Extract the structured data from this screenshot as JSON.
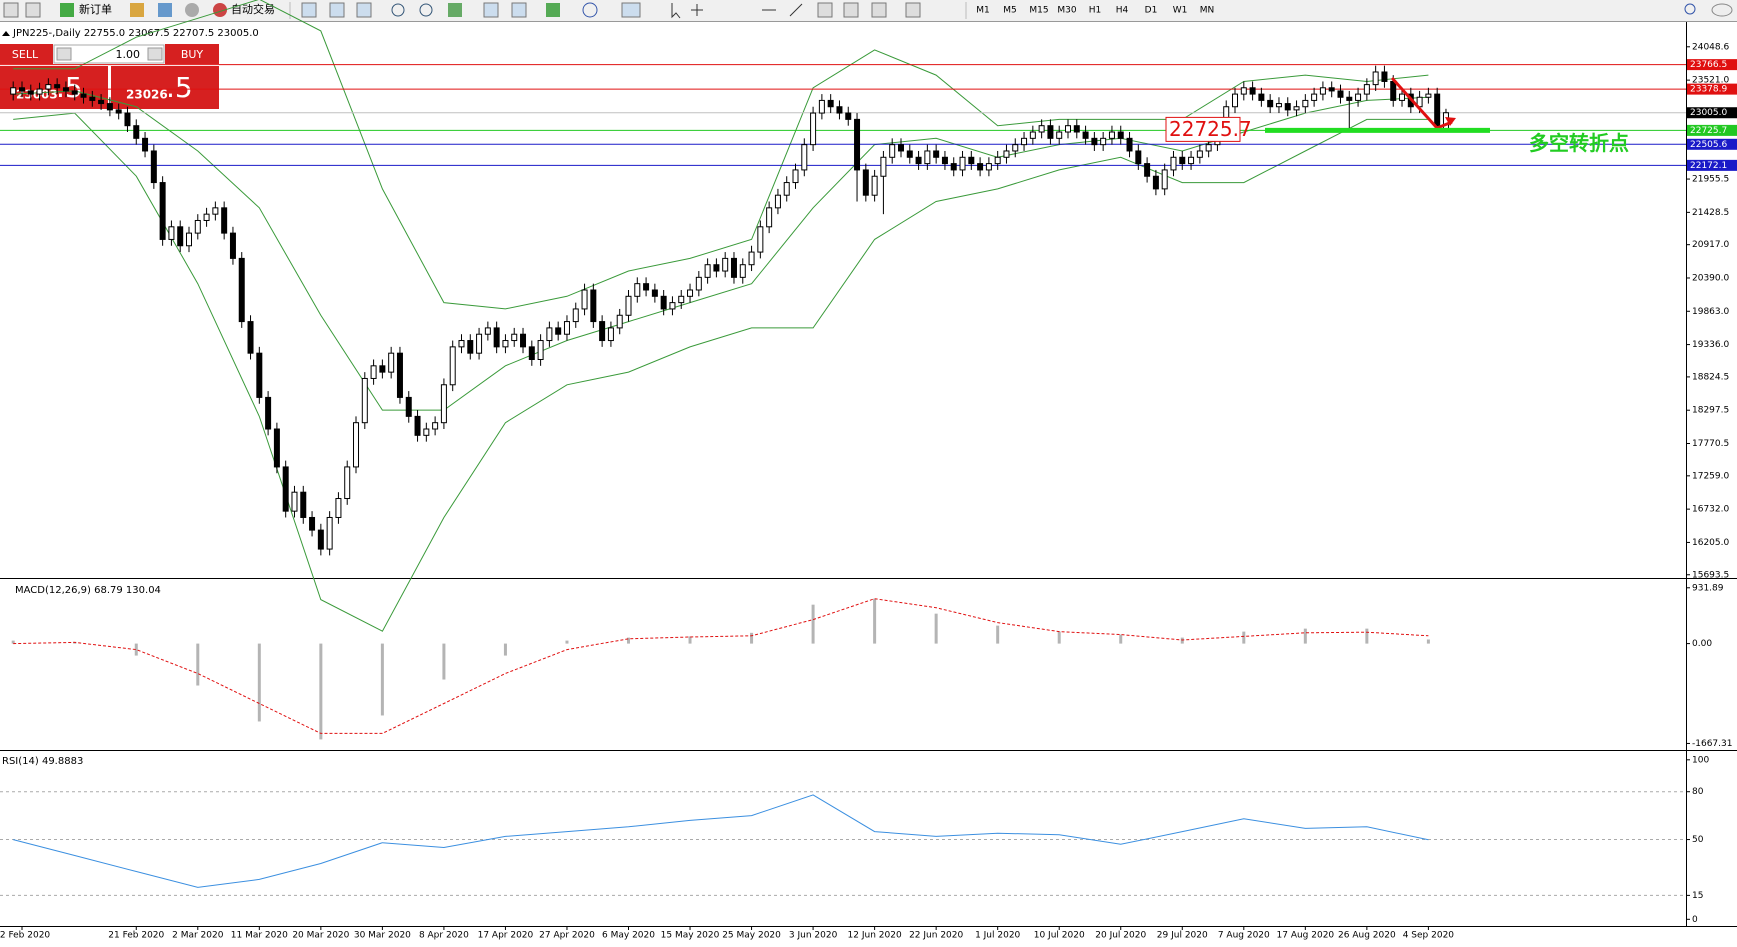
{
  "toolbar": {
    "new_order": "新订单",
    "auto_trading": "自动交易",
    "timeframes": [
      "M1",
      "M5",
      "M15",
      "M30",
      "H1",
      "H4",
      "D1",
      "W1",
      "MN"
    ]
  },
  "trade_panel": {
    "sell": "SELL",
    "buy": "BUY",
    "volume": "1.00",
    "sell_main": "23003",
    "sell_frac": ".5",
    "buy_main": "23026",
    "buy_frac": ".5"
  },
  "chart_data": [
    {
      "type": "candlestick",
      "title": "JPN225-,Daily  22755.0 23067.5 22707.5 23005.0",
      "categories": [
        null,
        "2 Feb 2020",
        null,
        null,
        null,
        null,
        null,
        null,
        null,
        null,
        null,
        null,
        null,
        null,
        "21 Feb 2020",
        null,
        null,
        null,
        null,
        null,
        null,
        "2 Mar 2020",
        null,
        null,
        null,
        null,
        null,
        null,
        "11 Mar 2020",
        null,
        null,
        null,
        null,
        null,
        null,
        "20 Mar 2020",
        null,
        null,
        null,
        null,
        null,
        null,
        "30 Mar 2020",
        null,
        null,
        null,
        null,
        null,
        null,
        "8 Apr 2020",
        null,
        null,
        null,
        null,
        null,
        null,
        "17 Apr 2020",
        null,
        null,
        null,
        null,
        null,
        null,
        "27 Apr 2020",
        null,
        null,
        null,
        null,
        null,
        null,
        "6 May 2020",
        null,
        null,
        null,
        null,
        null,
        null,
        "15 May 2020",
        null,
        null,
        null,
        null,
        null,
        null,
        "25 May 2020",
        null,
        null,
        null,
        null,
        null,
        null,
        "3 Jun 2020",
        null,
        null,
        null,
        null,
        null,
        null,
        "12 Jun 2020",
        null,
        null,
        null,
        null,
        null,
        null,
        "22 Jun 2020",
        null,
        null,
        null,
        null,
        null,
        null,
        "1 Jul 2020",
        null,
        null,
        null,
        null,
        null,
        null,
        "10 Jul 2020",
        null,
        null,
        null,
        null,
        null,
        null,
        "20 Jul 2020",
        null,
        null,
        null,
        null,
        null,
        null,
        "29 Jul 2020",
        null,
        null,
        null,
        null,
        null,
        null,
        "7 Aug 2020",
        null,
        null,
        null,
        null,
        null,
        null,
        "17 Aug 2020",
        null,
        null,
        null,
        null,
        null,
        null,
        "26 Aug 2020",
        null,
        null,
        null,
        null,
        null,
        null,
        "4 Sep 2020",
        null,
        null
      ],
      "open": [
        23300,
        23400,
        23350,
        23300,
        23380,
        23450,
        23400,
        23350,
        23300,
        23250,
        23200,
        23150,
        23050,
        23000,
        22800,
        22600,
        22400,
        21900,
        21000,
        21200,
        20900,
        21100,
        21300,
        21400,
        21500,
        21100,
        20700,
        19700,
        19200,
        18500,
        18000,
        17400,
        16700,
        17000,
        16600,
        16400,
        16100,
        16600,
        16900,
        17400,
        18100,
        18800,
        19000,
        18900,
        19200,
        18500,
        18200,
        17900,
        18000,
        18100,
        18700,
        19300,
        19400,
        19200,
        19500,
        19600,
        19300,
        19400,
        19500,
        19300,
        19100,
        19400,
        19600,
        19500,
        19700,
        19900,
        20200,
        19700,
        19400,
        19600,
        19800,
        20100,
        20300,
        20200,
        20100,
        19900,
        20000,
        20100,
        20200,
        20400,
        20600,
        20500,
        20700,
        20400,
        20600,
        20800,
        21200,
        21500,
        21700,
        21900,
        22100,
        22500,
        23000,
        23200,
        23100,
        23000,
        22900,
        22100,
        21700,
        22000,
        22300,
        22500,
        22400,
        22300,
        22200,
        22400,
        22300,
        22200,
        22100,
        22300,
        22200,
        22100,
        22200,
        22300,
        22400,
        22500,
        22600,
        22700,
        22800,
        22600,
        22700,
        22800,
        22700,
        22600,
        22500,
        22600,
        22700,
        22600,
        22400,
        22200,
        22000,
        21800,
        22100,
        22300,
        22200,
        22300,
        22400,
        22500,
        22700,
        23100,
        23300,
        23400,
        23300,
        23200,
        23100,
        23150,
        23050,
        23100,
        23200,
        23300,
        23400,
        23350,
        23250,
        23200,
        23300,
        23450,
        23650,
        23500,
        23200,
        23300,
        23100,
        23250,
        23300,
        22755
      ],
      "high": [
        23500,
        23500,
        23450,
        23480,
        23550,
        23550,
        23500,
        23450,
        23400,
        23350,
        23300,
        23250,
        23150,
        23100,
        22900,
        22700,
        22500,
        22000,
        21300,
        21300,
        21200,
        21400,
        21500,
        21600,
        21600,
        21200,
        20800,
        19800,
        19300,
        18600,
        18100,
        17500,
        17100,
        17100,
        16700,
        16500,
        16700,
        17000,
        17500,
        18200,
        18900,
        19100,
        19100,
        19300,
        19300,
        18600,
        18300,
        18100,
        18200,
        18800,
        19400,
        19500,
        19500,
        19600,
        19700,
        19700,
        19500,
        19600,
        19600,
        19400,
        19500,
        19700,
        19700,
        19800,
        20000,
        20300,
        20300,
        19800,
        19700,
        19900,
        20200,
        20400,
        20400,
        20300,
        20200,
        20100,
        20200,
        20300,
        20500,
        20700,
        20700,
        20800,
        20800,
        20700,
        20900,
        21300,
        21600,
        21800,
        22000,
        22200,
        22600,
        23100,
        23300,
        23300,
        23200,
        23100,
        23000,
        22200,
        22100,
        22400,
        22600,
        22600,
        22500,
        22400,
        22500,
        22500,
        22400,
        22300,
        22400,
        22400,
        22300,
        22300,
        22400,
        22500,
        22600,
        22700,
        22800,
        22900,
        22900,
        22800,
        22900,
        22900,
        22800,
        22700,
        22700,
        22800,
        22800,
        22700,
        22500,
        22300,
        22100,
        22200,
        22400,
        22400,
        22400,
        22500,
        22600,
        22800,
        23200,
        23400,
        23500,
        23500,
        23400,
        23300,
        23250,
        23250,
        23200,
        23300,
        23400,
        23500,
        23500,
        23450,
        23350,
        23400,
        23550,
        23750,
        23750,
        23600,
        23400,
        23400,
        23350,
        23400,
        23400,
        23067.5
      ],
      "low": [
        23200,
        23250,
        23200,
        23200,
        23280,
        23300,
        23250,
        23200,
        23150,
        23100,
        23050,
        22950,
        22900,
        22700,
        22500,
        22300,
        21800,
        20900,
        20900,
        20800,
        20800,
        21000,
        21200,
        21300,
        21000,
        20600,
        19600,
        19100,
        18400,
        17900,
        17300,
        16600,
        16600,
        16500,
        16300,
        16000,
        16000,
        16500,
        16800,
        17300,
        18000,
        18700,
        18800,
        18800,
        18400,
        18100,
        17800,
        17800,
        17900,
        18000,
        18600,
        19200,
        19100,
        19100,
        19400,
        19200,
        19200,
        19300,
        19200,
        19000,
        19000,
        19300,
        19400,
        19400,
        19600,
        19800,
        19600,
        19300,
        19300,
        19500,
        19700,
        20000,
        20100,
        20000,
        19800,
        19800,
        19900,
        20000,
        20100,
        20300,
        20400,
        20400,
        20300,
        20300,
        20500,
        20700,
        21100,
        21400,
        21600,
        21800,
        22000,
        22400,
        22900,
        23000,
        22900,
        22800,
        21600,
        21600,
        21600,
        21400,
        22200,
        22300,
        22200,
        22100,
        22100,
        22200,
        22100,
        22000,
        22000,
        22100,
        22000,
        22000,
        22100,
        22200,
        22300,
        22400,
        22500,
        22600,
        22500,
        22500,
        22600,
        22600,
        22500,
        22400,
        22400,
        22500,
        22500,
        22300,
        22100,
        21900,
        21700,
        21700,
        22000,
        22100,
        22100,
        22200,
        22300,
        22400,
        22600,
        23000,
        23200,
        23200,
        23100,
        23000,
        23000,
        22950,
        22950,
        23000,
        23100,
        23200,
        23250,
        23150,
        22700,
        23100,
        23200,
        23350,
        23400,
        23100,
        23100,
        23000,
        23000,
        23150,
        22700,
        22707.5
      ],
      "close": [
        23400,
        23350,
        23300,
        23380,
        23450,
        23400,
        23350,
        23300,
        23250,
        23200,
        23150,
        23050,
        23000,
        22800,
        22600,
        22400,
        21900,
        21000,
        21200,
        20900,
        21100,
        21300,
        21400,
        21500,
        21100,
        20700,
        19700,
        19200,
        18500,
        18000,
        17400,
        16700,
        17000,
        16600,
        16400,
        16100,
        16600,
        16900,
        17400,
        18100,
        18800,
        19000,
        18900,
        19200,
        18500,
        18200,
        17900,
        18000,
        18100,
        18700,
        19300,
        19400,
        19200,
        19500,
        19600,
        19300,
        19400,
        19500,
        19300,
        19100,
        19400,
        19600,
        19500,
        19700,
        19900,
        20200,
        19700,
        19400,
        19600,
        19800,
        20100,
        20300,
        20200,
        20100,
        19900,
        20000,
        20100,
        20200,
        20400,
        20600,
        20500,
        20700,
        20400,
        20600,
        20800,
        21200,
        21500,
        21700,
        21900,
        22100,
        22500,
        23000,
        23200,
        23100,
        23000,
        22900,
        22100,
        21700,
        22000,
        22300,
        22500,
        22400,
        22300,
        22200,
        22400,
        22300,
        22200,
        22100,
        22300,
        22200,
        22100,
        22200,
        22300,
        22400,
        22500,
        22600,
        22700,
        22800,
        22600,
        22700,
        22800,
        22700,
        22600,
        22500,
        22600,
        22700,
        22600,
        22400,
        22200,
        22000,
        21800,
        22100,
        22300,
        22200,
        22300,
        22400,
        22500,
        22700,
        23100,
        23300,
        23400,
        23300,
        23200,
        23100,
        23150,
        23050,
        23100,
        23200,
        23300,
        23400,
        23350,
        23250,
        23200,
        23300,
        23450,
        23650,
        23500,
        23200,
        23300,
        23100,
        23250,
        23300,
        22800,
        23005
      ],
      "bollinger": {
        "color": "#3a9a3a",
        "upper": [
          23700,
          23700,
          24200,
          24500,
          24800,
          24300,
          21800,
          20000,
          19900,
          20100,
          20500,
          20700,
          21000,
          23400,
          24000,
          23600,
          22800,
          22900,
          22900,
          22900,
          23500,
          23600,
          23500,
          23600
        ],
        "middle": [
          23300,
          23350,
          23100,
          22400,
          21500,
          19800,
          18300,
          18300,
          19000,
          19400,
          19700,
          20000,
          20300,
          21500,
          22500,
          22600,
          22300,
          22500,
          22600,
          22400,
          22700,
          23000,
          23200,
          23250
        ],
        "lower": [
          22900,
          23000,
          22000,
          20300,
          18200,
          15300,
          14800,
          16600,
          18100,
          18700,
          18900,
          19300,
          19600,
          19600,
          21000,
          21600,
          21800,
          22100,
          22300,
          21900,
          21900,
          22400,
          22900,
          22900
        ]
      },
      "ylim": [
        15658,
        24346
      ],
      "yticks": [
        {
          "value": 24048.6,
          "label": "24048.6"
        },
        {
          "value": 23521,
          "label": "23521.0"
        },
        {
          "value": 21955.5,
          "label": "21955.5"
        },
        {
          "value": 21428.5,
          "label": "21428.5"
        },
        {
          "value": 20917,
          "label": "20917.0"
        },
        {
          "value": 20390,
          "label": "20390.0"
        },
        {
          "value": 19863,
          "label": "19863.0"
        },
        {
          "value": 19336,
          "label": "19336.0"
        },
        {
          "value": 18824.5,
          "label": "18824.5"
        },
        {
          "value": 18297.5,
          "label": "18297.5"
        },
        {
          "value": 17770.5,
          "label": "17770.5"
        },
        {
          "value": 17259,
          "label": "17259.0"
        },
        {
          "value": 16732,
          "label": "16732.0"
        },
        {
          "value": 16205,
          "label": "16205.0"
        },
        {
          "value": 15693.5,
          "label": "15693.5"
        }
      ],
      "levels": [
        {
          "value": 23766.5,
          "color": "#e01010"
        },
        {
          "value": 23378.9,
          "color": "#e01010"
        },
        {
          "value": 23005,
          "label": "23005.0",
          "color": "#000000",
          "line_color": "#c0c0c0"
        },
        {
          "value": 22725.7,
          "color": "#22c822"
        },
        {
          "value": 22505.6,
          "color": "#1a1ac8"
        },
        {
          "value": 22172.1,
          "color": "#1a1ac8"
        }
      ],
      "annotation": "多空转折点"
    },
    {
      "type": "macd",
      "title": "MACD(12,26,9) 68.79 130.04",
      "histogram": [
        50,
        30,
        -200,
        -700,
        -1300,
        -1600,
        -1200,
        -600,
        -200,
        50,
        100,
        120,
        180,
        650,
        750,
        500,
        300,
        200,
        150,
        100,
        200,
        250,
        250,
        68.79
      ],
      "signal": [
        0,
        20,
        -100,
        -500,
        -1000,
        -1500,
        -1500,
        -1000,
        -500,
        -100,
        80,
        110,
        130,
        400,
        750,
        600,
        350,
        200,
        150,
        60,
        120,
        180,
        190,
        130.04
      ],
      "hist_color": "#b4b4b4",
      "signal_color": "#e01010",
      "ylim": [
        -1760,
        1062
      ],
      "yticks": [
        931.89,
        {
          "value": 0,
          "label": "0.00"
        },
        -1667.31
      ]
    },
    {
      "type": "line",
      "title": "RSI(14) 49.8883",
      "values": [
        50,
        40,
        30,
        20,
        25,
        35,
        48,
        45,
        52,
        55,
        58,
        62,
        65,
        78,
        55,
        52,
        54,
        53,
        47,
        55,
        63,
        57,
        58,
        49.8883
      ],
      "color": "#3b8fe0",
      "ylim": [
        -4.2,
        104.9
      ],
      "yticks": [
        100,
        80,
        50,
        15,
        0
      ],
      "grid": true
    }
  ]
}
